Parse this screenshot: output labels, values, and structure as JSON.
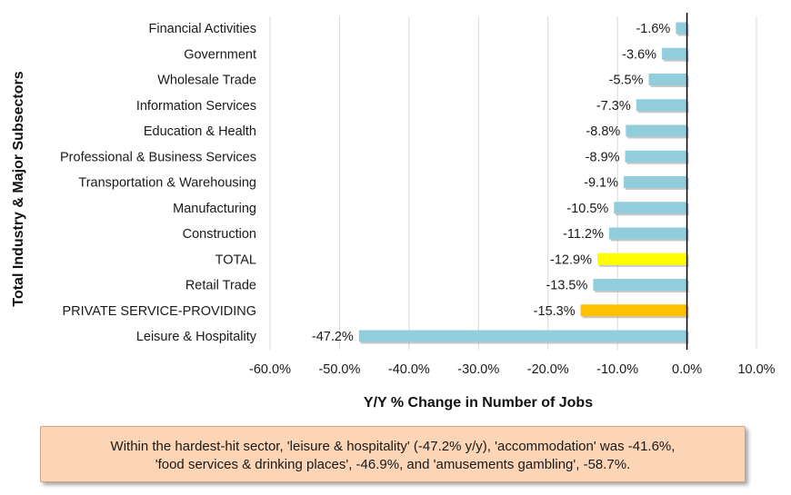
{
  "chart_data": {
    "type": "bar",
    "orientation": "horizontal",
    "categories": [
      "Financial Activities",
      "Government",
      "Wholesale Trade",
      "Information Services",
      "Education & Health",
      "Professional & Business Services",
      "Transportation & Warehousing",
      "Manufacturing",
      "Construction",
      "TOTAL",
      "Retail Trade",
      "PRIVATE SERVICE-PROVIDING",
      "Leisure & Hospitality"
    ],
    "values": [
      -1.6,
      -3.6,
      -5.5,
      -7.3,
      -8.8,
      -8.9,
      -9.1,
      -10.5,
      -11.2,
      -12.9,
      -13.5,
      -15.3,
      -47.2
    ],
    "value_labels": [
      "-1.6%",
      "-3.6%",
      "-5.5%",
      "-7.3%",
      "-8.8%",
      "-8.9%",
      "-9.1%",
      "-10.5%",
      "-11.2%",
      "-12.9%",
      "-13.5%",
      "-15.3%",
      "-47.2%"
    ],
    "bar_colors": [
      "#92cddc",
      "#92cddc",
      "#92cddc",
      "#92cddc",
      "#92cddc",
      "#92cddc",
      "#92cddc",
      "#92cddc",
      "#92cddc",
      "#ffff00",
      "#92cddc",
      "#ffc000",
      "#92cddc"
    ],
    "xlim": [
      -60,
      10
    ],
    "xticks": [
      -60,
      -50,
      -40,
      -30,
      -20,
      -10,
      0,
      10
    ],
    "xtick_labels": [
      "-60.0%",
      "-50.0%",
      "-40.0%",
      "-30.0%",
      "-20.0%",
      "-10.0%",
      "0.0%",
      "10.0%"
    ],
    "xlabel": "Y/Y % Change in Number of Jobs",
    "ylabel": "Total Industry & Major Subsectors",
    "grid": "vertical"
  },
  "note": {
    "line1": "Within the hardest-hit sector, 'leisure & hospitality' (-47.2% y/y), 'accommodation' was -41.6%,",
    "line2": "'food services & drinking places', -46.9%, and 'amusements gambling', -58.7%."
  }
}
